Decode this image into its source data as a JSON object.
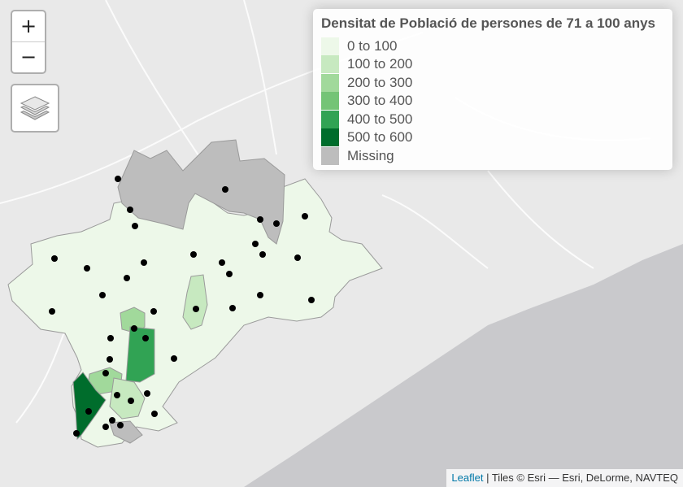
{
  "legend": {
    "title": "Densitat de Població de persones de 71 a 100 anys",
    "items": [
      {
        "label": "0 to 100",
        "color": "#edf8e9"
      },
      {
        "label": "100 to 200",
        "color": "#c7e9c0"
      },
      {
        "label": "200 to 300",
        "color": "#a1d99b"
      },
      {
        "label": "300 to 400",
        "color": "#74c476"
      },
      {
        "label": "400 to 500",
        "color": "#31a354"
      },
      {
        "label": "500 to 600",
        "color": "#006d2c"
      },
      {
        "label": "Missing",
        "color": "#bdbdbd"
      }
    ]
  },
  "controls": {
    "zoom_in": "+",
    "zoom_out": "−",
    "layers_icon": "layers-icon"
  },
  "attribution": {
    "link": "Leaflet",
    "text": " | Tiles © Esri — Esri, DeLorme, NAVTEQ"
  },
  "colors": {
    "land": "#e9e9e9",
    "sea": "#c9c9cc",
    "border": "#9a9a9a",
    "marker": "#000000"
  }
}
